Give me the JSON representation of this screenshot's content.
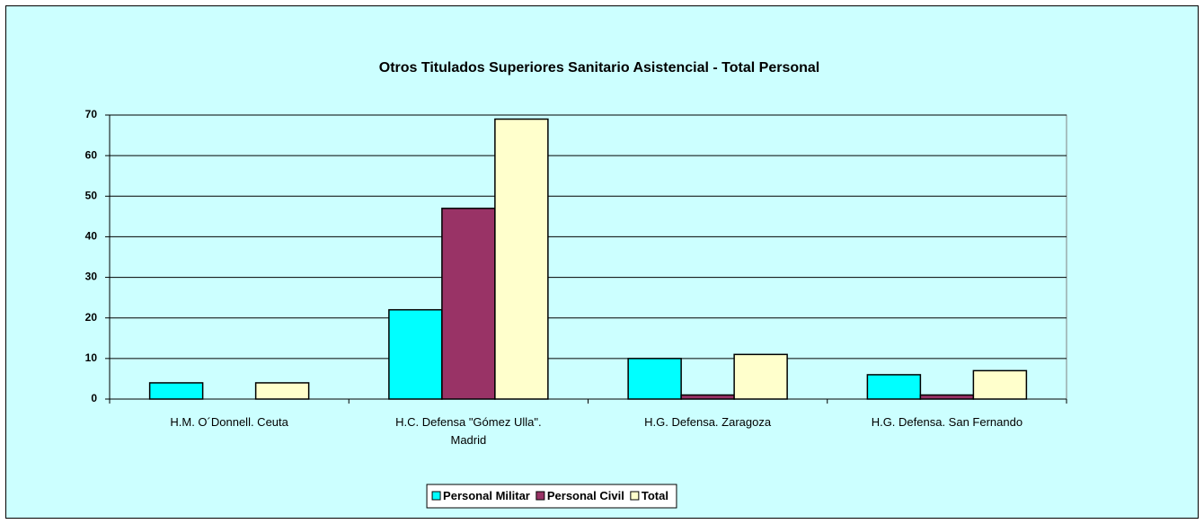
{
  "chart_data": {
    "type": "bar",
    "title": "Otros Titulados Superiores Sanitario Asistencial - Total Personal",
    "categories": [
      "H.M. O´Donnell. Ceuta",
      "H.C. Defensa \"Gómez Ulla\". Madrid",
      "H.G. Defensa. Zaragoza",
      "H.G. Defensa. San Fernando"
    ],
    "series": [
      {
        "name": "Personal Militar",
        "color": "#00ffff",
        "values": [
          4,
          22,
          10,
          6
        ]
      },
      {
        "name": "Personal Civil",
        "color": "#993366",
        "values": [
          0,
          47,
          1,
          1
        ]
      },
      {
        "name": "Total",
        "color": "#ffffcc",
        "values": [
          4,
          69,
          11,
          7
        ]
      }
    ],
    "ylim": [
      0,
      70
    ],
    "yticks": [
      0,
      10,
      20,
      30,
      40,
      50,
      60,
      70
    ],
    "grid": true,
    "legend": "bottom"
  }
}
